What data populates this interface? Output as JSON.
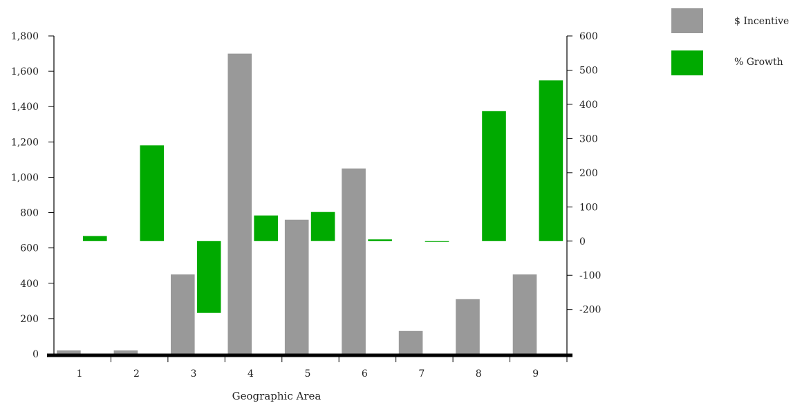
{
  "chart_data": {
    "type": "bar",
    "xlabel": "Geographic Area",
    "categories": [
      "1",
      "2",
      "3",
      "4",
      "5",
      "6",
      "7",
      "8",
      "9"
    ],
    "series": [
      {
        "name": "$ Incentive",
        "axis": "left",
        "color": "#999999",
        "values": [
          20,
          20,
          450,
          1700,
          760,
          1050,
          130,
          310,
          450
        ]
      },
      {
        "name": "% Growth",
        "axis": "right",
        "color": "#00aa00",
        "values": [
          15,
          280,
          -210,
          75,
          85,
          5,
          0,
          380,
          470
        ]
      }
    ],
    "y_left": {
      "ylim": [
        0,
        1800
      ],
      "ticks": [
        0,
        200,
        400,
        600,
        800,
        1000,
        1200,
        1400,
        1600,
        1800
      ],
      "tick_labels": [
        "0",
        "200",
        "400",
        "600",
        "800",
        "1,000",
        "1,200",
        "1,400",
        "1,600",
        "1,800"
      ]
    },
    "y_right": {
      "ylim": [
        -330,
        600
      ],
      "ticks": [
        -200,
        -100,
        0,
        100,
        200,
        300,
        400,
        500,
        600
      ],
      "tick_labels": [
        "-200",
        "-100",
        "0",
        "100",
        "200",
        "300",
        "400",
        "500",
        "600"
      ]
    },
    "legend": {
      "placement": "top-right",
      "entries": [
        "$ Incentive",
        "% Growth"
      ]
    },
    "grid": false
  }
}
